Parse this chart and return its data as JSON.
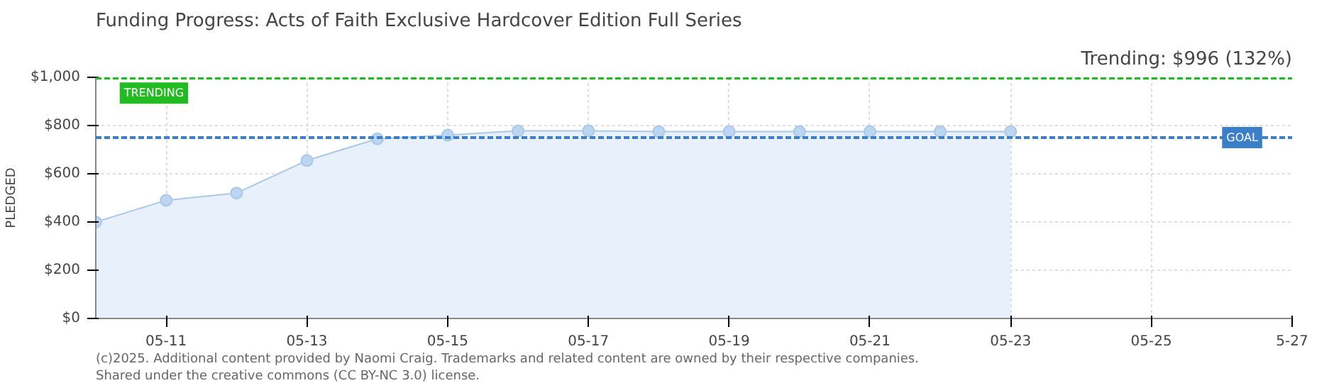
{
  "chart_data": {
    "type": "area",
    "title": "Funding Progress: Acts of Faith Exclusive Hardcover Edition Full Series",
    "ylabel": "PLEDGED",
    "annotations": [
      "Trending: $996 (132%)",
      "(c)2025. Additional content provided by Naomi Craig. Trademarks and related content are owned by their respective companies.",
      "Shared under the creative commons (CC BY-NC 3.0) license."
    ],
    "x": [
      "2025-05-10",
      "2025-05-11",
      "2025-05-12",
      "2025-05-13",
      "2025-05-14",
      "2025-05-15",
      "2025-05-16",
      "2025-05-17",
      "2025-05-18",
      "2025-05-19",
      "2025-05-20",
      "2025-05-21",
      "2025-05-22",
      "2025-05-23"
    ],
    "series": [
      {
        "color": "#a9c8e8",
        "values": [
          400,
          490,
          520,
          655,
          745,
          760,
          778,
          778,
          775,
          775,
          775,
          775,
          775,
          775
        ]
      }
    ],
    "marker": "circle",
    "grid": true,
    "ylim": [
      0,
      1000
    ],
    "yticks": [
      {
        "value": 0,
        "label": "$0"
      },
      {
        "value": 200,
        "label": "$200"
      },
      {
        "value": 400,
        "label": "$400"
      },
      {
        "value": 600,
        "label": "$600"
      },
      {
        "value": 800,
        "label": "$800"
      },
      {
        "value": 1000,
        "label": "$1,000"
      }
    ],
    "xlim": [
      "2025-05-10",
      "2025-05-27"
    ],
    "xticks": [
      {
        "value": "2025-05-11",
        "label": "05-11"
      },
      {
        "value": "2025-05-13",
        "label": "05-13"
      },
      {
        "value": "2025-05-15",
        "label": "05-15"
      },
      {
        "value": "2025-05-17",
        "label": "05-17"
      },
      {
        "value": "2025-05-19",
        "label": "05-19"
      },
      {
        "value": "2025-05-21",
        "label": "05-21"
      },
      {
        "value": "2025-05-23",
        "label": "05-23"
      },
      {
        "value": "2025-05-25",
        "label": "05-25"
      },
      {
        "value": "2025-05-27",
        "label": "5-27"
      }
    ],
    "ref_lines": [
      {
        "axis": "y",
        "value": 996,
        "label": "TRENDING",
        "color": "#22bb22",
        "line_style": "dashed"
      },
      {
        "axis": "y",
        "value": 750,
        "label": "GOAL",
        "color": "#3a7fc8",
        "line_style": "dashed"
      }
    ]
  }
}
